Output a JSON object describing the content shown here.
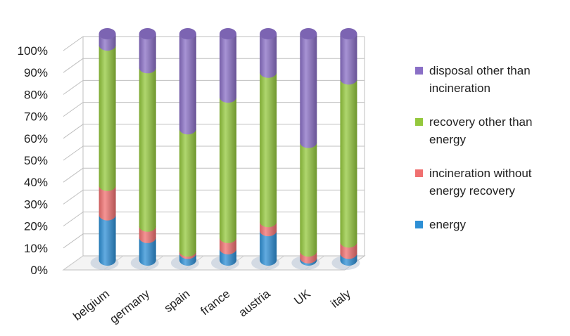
{
  "chart_data": {
    "type": "bar",
    "stacked": true,
    "percent": true,
    "shape": "cylinder-3d",
    "categories": [
      "belgium",
      "germany",
      "spain",
      "france",
      "austria",
      "UK",
      "italy"
    ],
    "series": [
      {
        "name": "energy",
        "color": "#2d8fd5",
        "values": [
          20,
          10,
          3,
          5,
          13,
          1,
          3
        ]
      },
      {
        "name": "incineration without energy recovery",
        "color": "#f07070",
        "values": [
          13,
          5,
          1,
          5,
          4,
          3,
          5
        ]
      },
      {
        "name": "recovery other than energy",
        "color": "#94c83d",
        "values": [
          62,
          70,
          54,
          62,
          66,
          48,
          72
        ]
      },
      {
        "name": "disposal other than incineration",
        "color": "#8a6fc6",
        "values": [
          5,
          15,
          42,
          28,
          17,
          48,
          20
        ]
      }
    ],
    "yticks": [
      "0%",
      "10%",
      "20%",
      "30%",
      "40%",
      "50%",
      "60%",
      "70%",
      "80%",
      "90%",
      "100%"
    ],
    "ylim": [
      0,
      100
    ],
    "legend_position": "right"
  },
  "legend": [
    {
      "label": "disposal other than incineration",
      "color": "#8a6fc6"
    },
    {
      "label": "recovery other than energy",
      "color": "#94c83d"
    },
    {
      "label": "incineration without energy recovery",
      "color": "#f07070"
    },
    {
      "label": "energy",
      "color": "#2d8fd5"
    }
  ]
}
